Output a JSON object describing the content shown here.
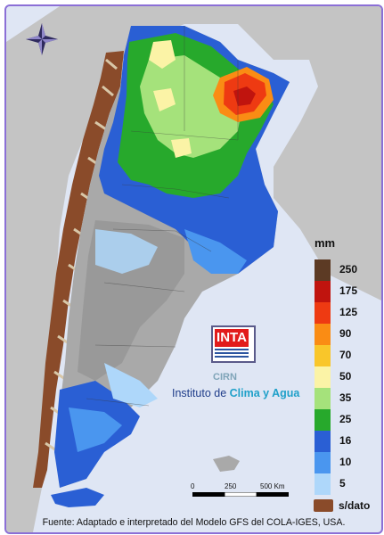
{
  "legend": {
    "unit": "mm",
    "items": [
      {
        "label": "250",
        "color": "#5c3a24"
      },
      {
        "label": "175",
        "color": "#c0140e"
      },
      {
        "label": "125",
        "color": "#ee3a12"
      },
      {
        "label": "90",
        "color": "#fa8c14"
      },
      {
        "label": "70",
        "color": "#f9c62a"
      },
      {
        "label": "50",
        "color": "#fbf3a6"
      },
      {
        "label": "35",
        "color": "#a5e27b"
      },
      {
        "label": "25",
        "color": "#27a92c"
      },
      {
        "label": "16",
        "color": "#2a5fd4"
      },
      {
        "label": "10",
        "color": "#4a96ef"
      },
      {
        "label": "5",
        "color": "#aed7fa"
      }
    ],
    "nodata_label": "s/dato",
    "nodata_color": "#8a4b2a"
  },
  "logo": {
    "text": "INTA",
    "subtext": "CIRN"
  },
  "institute": {
    "prefix": "Instituto de",
    "highlight": "Clima y Agua"
  },
  "scale": {
    "labels": [
      "0",
      "250",
      "500 Km"
    ]
  },
  "footer": "Fuente: Adaptado e interpretado del Modelo GFS del COLA-IGES, USA.",
  "colors": {
    "sea": "#dfe6f4",
    "land_bg": "#c4c4c4",
    "frame": "#8b6fd6"
  }
}
